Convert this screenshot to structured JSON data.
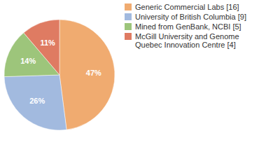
{
  "chart_data": {
    "type": "pie",
    "categories": [
      "Generic Commercial Labs [16]",
      "University of British Columbia [9]",
      "Mined from GenBank, NCBI [5]",
      "McGill University and Genome Quebec Innovation Centre [4]"
    ],
    "values": [
      47,
      26,
      14,
      11
    ],
    "value_labels": [
      "47%",
      "26%",
      "14%",
      "11%"
    ],
    "colors": [
      "#f0ab70",
      "#a2badf",
      "#9dc57b",
      "#df7b62"
    ],
    "data_labels": true,
    "legend": "right"
  }
}
